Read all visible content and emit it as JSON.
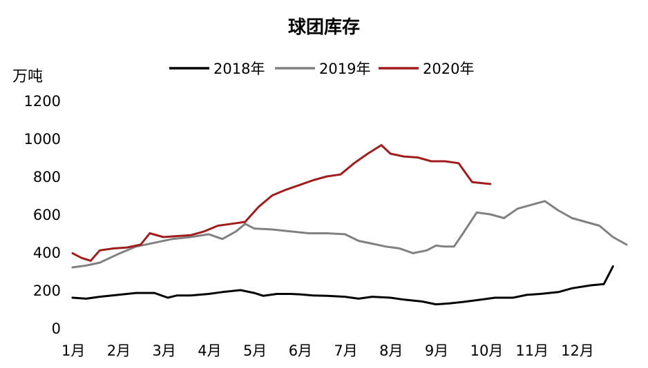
{
  "chart_data": {
    "type": "line",
    "title": "球团库存",
    "ylabel": "万吨",
    "xlabel": "",
    "ylim": [
      0,
      1200
    ],
    "yticks": [
      "0",
      "200",
      "400",
      "600",
      "800",
      "1000",
      "1200"
    ],
    "xlim": [
      1,
      13.2
    ],
    "categories": [
      "1月",
      "2月",
      "3月",
      "4月",
      "5月",
      "6月",
      "7月",
      "8月",
      "9月",
      "10月",
      "11月",
      "12月"
    ],
    "grid": false,
    "legend_position": "top",
    "series": [
      {
        "name": "2018年",
        "color": "#000000",
        "x": [
          1.0,
          1.3,
          1.6,
          2.0,
          2.4,
          2.8,
          3.1,
          3.3,
          3.6,
          4.0,
          4.3,
          4.7,
          5.0,
          5.2,
          5.5,
          5.8,
          6.0,
          6.3,
          6.6,
          7.0,
          7.3,
          7.6,
          8.0,
          8.3,
          8.7,
          9.0,
          9.3,
          9.6,
          10.0,
          10.3,
          10.7,
          11.0,
          11.3,
          11.7,
          12.0,
          12.4,
          12.7,
          12.9
        ],
        "values": [
          160,
          155,
          165,
          175,
          185,
          185,
          160,
          172,
          172,
          180,
          190,
          200,
          185,
          170,
          180,
          180,
          178,
          172,
          170,
          165,
          155,
          165,
          160,
          150,
          140,
          125,
          130,
          138,
          150,
          160,
          160,
          175,
          180,
          190,
          210,
          225,
          232,
          325
        ]
      },
      {
        "name": "2019年",
        "color": "#808080",
        "x": [
          1.0,
          1.3,
          1.6,
          2.0,
          2.4,
          2.8,
          3.2,
          3.6,
          4.0,
          4.3,
          4.6,
          4.8,
          5.0,
          5.4,
          5.8,
          6.2,
          6.6,
          7.0,
          7.3,
          7.6,
          7.9,
          8.2,
          8.5,
          8.8,
          9.0,
          9.2,
          9.4,
          9.6,
          9.9,
          10.2,
          10.5,
          10.8,
          11.1,
          11.4,
          11.7,
          12.0,
          12.3,
          12.6,
          12.9,
          13.2
        ],
        "values": [
          320,
          330,
          345,
          390,
          430,
          450,
          470,
          480,
          495,
          470,
          510,
          550,
          525,
          520,
          510,
          500,
          500,
          495,
          460,
          445,
          430,
          420,
          395,
          410,
          435,
          430,
          430,
          500,
          610,
          600,
          580,
          630,
          650,
          670,
          620,
          580,
          560,
          540,
          480,
          440
        ]
      },
      {
        "name": "2020年",
        "color": "#a01c1c",
        "x": [
          1.0,
          1.2,
          1.4,
          1.6,
          1.9,
          2.2,
          2.5,
          2.7,
          3.0,
          3.3,
          3.6,
          3.9,
          4.2,
          4.5,
          4.8,
          5.1,
          5.4,
          5.7,
          6.0,
          6.3,
          6.6,
          6.9,
          7.2,
          7.5,
          7.8,
          8.0,
          8.3,
          8.6,
          8.9,
          9.2,
          9.5,
          9.8,
          10.2
        ],
        "values": [
          395,
          370,
          355,
          410,
          420,
          425,
          440,
          500,
          480,
          485,
          490,
          510,
          540,
          550,
          560,
          640,
          700,
          730,
          755,
          780,
          800,
          810,
          870,
          920,
          965,
          920,
          905,
          900,
          880,
          880,
          870,
          770,
          760
        ]
      }
    ]
  }
}
